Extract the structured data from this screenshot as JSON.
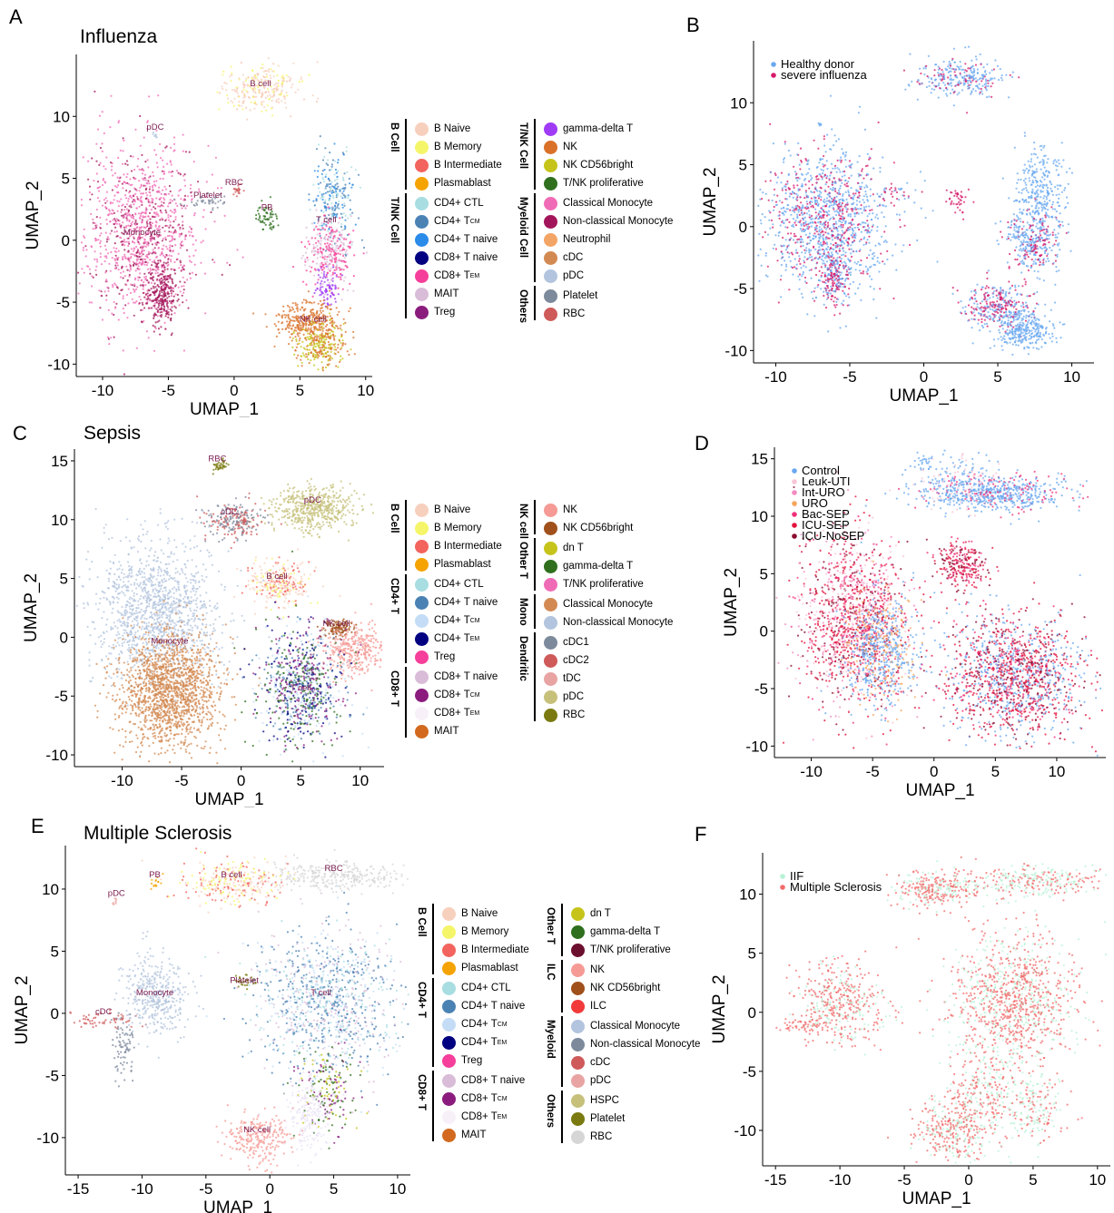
{
  "panels": [
    {
      "letter": "A",
      "title": "Influenza",
      "xlabel": "UMAP_1",
      "ylabel": "UMAP_2",
      "xticks": [
        "-10",
        "-5",
        "0",
        "5",
        "10"
      ],
      "yticks": [
        "10",
        "5",
        "0",
        "-5",
        "-10"
      ],
      "annotations": [
        "B cell",
        "pDC",
        "Monocyte",
        "Platelet",
        "RBC",
        "PB",
        "T cell",
        "NK cell"
      ]
    },
    {
      "letter": "B",
      "title": "",
      "xlabel": "UMAP_1",
      "ylabel": "UMAP_2",
      "xticks": [
        "-10",
        "-5",
        "0",
        "5",
        "10"
      ],
      "yticks": [
        "10",
        "5",
        "0",
        "-5",
        "-10"
      ],
      "legend": [
        "Healthy donor",
        "severe influenza"
      ]
    },
    {
      "letter": "C",
      "title": "Sepsis",
      "xlabel": "UMAP_1",
      "ylabel": "UMAP_2",
      "xticks": [
        "-10",
        "-5",
        "0",
        "5",
        "10"
      ],
      "yticks": [
        "15",
        "10",
        "5",
        "0",
        "-5",
        "-10"
      ],
      "annotations": [
        "RBC",
        "pDC",
        "cDC",
        "B cell",
        "NK cell",
        "Monocyte",
        "T cell"
      ]
    },
    {
      "letter": "D",
      "title": "",
      "xlabel": "UMAP_1",
      "ylabel": "UMAP_2",
      "xticks": [
        "-10",
        "-5",
        "0",
        "5",
        "10"
      ],
      "yticks": [
        "15",
        "10",
        "5",
        "0",
        "-5",
        "-10"
      ],
      "legend": [
        "Control",
        "Leuk-UTI",
        "Int-URO",
        "URO",
        "Bac-SEP",
        "ICU-SEP",
        "ICU-NoSEP"
      ]
    },
    {
      "letter": "E",
      "title": "Multiple Sclerosis",
      "xlabel": "UMAP_1",
      "ylabel": "UMAP_2",
      "xticks": [
        "-15",
        "-10",
        "-5",
        "0",
        "5",
        "10"
      ],
      "yticks": [
        "10",
        "5",
        "0",
        "-5",
        "-10"
      ],
      "annotations": [
        "RBC",
        "PB",
        "pDC",
        "B cell",
        "Platelet",
        "cDC",
        "Monocyte",
        "T cell",
        "NK cell"
      ]
    },
    {
      "letter": "F",
      "title": "",
      "xlabel": "UMAP_1",
      "ylabel": "UMAP_2",
      "xticks": [
        "-15",
        "-10",
        "-5",
        "0",
        "5",
        "10"
      ],
      "yticks": [
        "10",
        "5",
        "0",
        "-5",
        "-10"
      ],
      "legend": [
        "IIF",
        "Multiple Sclerosis"
      ]
    }
  ],
  "legends": {
    "A": {
      "left": [
        {
          "group": "B Cell",
          "items": [
            [
              "B Naive",
              "",
              "#f7d0bd"
            ],
            [
              "B Memory",
              "",
              "#f5f56a"
            ],
            [
              "B Intermediate",
              "",
              "#f2645d"
            ],
            [
              "Plasmablast",
              "",
              "#f5a300"
            ]
          ]
        },
        {
          "group": "T/NK Cell",
          "items": [
            [
              "CD4+ CTL",
              "",
              "#a8dde2"
            ],
            [
              "CD4+ T",
              "CM",
              "#4b82b4"
            ],
            [
              "CD4+ T naive",
              "",
              "#2b8be8"
            ],
            [
              "CD8+ T naive",
              "",
              "#000080"
            ],
            [
              "CD8+ T",
              "EM",
              "#f53f9a"
            ],
            [
              "MAIT",
              "",
              "#d9bcd8"
            ],
            [
              "Treg",
              "",
              "#8b1c7e"
            ]
          ]
        }
      ],
      "right": [
        {
          "group": "T/NK Cell",
          "items": [
            [
              "gamma-delta T",
              "",
              "#9f3af5"
            ],
            [
              "NK",
              "",
              "#d97129"
            ],
            [
              "NK CD56bright",
              "",
              "#c6c41a"
            ],
            [
              "T/NK proliferative",
              "",
              "#2f6f1e"
            ]
          ]
        },
        {
          "group": "Myeloid Cell",
          "items": [
            [
              "Classical Monocyte",
              "",
              "#f06bb6"
            ],
            [
              "Non-classical Monocyte",
              "",
              "#a3155a"
            ],
            [
              "Neutrophil",
              "",
              "#f2a565"
            ],
            [
              "cDC",
              "",
              "#d38a52"
            ],
            [
              "pDC",
              "",
              "#b3c4de"
            ]
          ]
        },
        {
          "group": "Others",
          "items": [
            [
              "Platelet",
              "",
              "#7d8a9c"
            ],
            [
              "RBC",
              "",
              "#cf5a5a"
            ]
          ]
        }
      ]
    },
    "C": {
      "left": [
        {
          "group": "B Cell",
          "items": [
            [
              "B Naive",
              "",
              "#f7d0bd"
            ],
            [
              "B Memory",
              "",
              "#f5f56a"
            ],
            [
              "B Intermediate",
              "",
              "#f2645d"
            ],
            [
              "Plasmablast",
              "",
              "#f5a300"
            ]
          ]
        },
        {
          "group": "CD4+ T",
          "items": [
            [
              "CD4+ CTL",
              "",
              "#a8dde2"
            ],
            [
              "CD4+ T naive",
              "",
              "#4b82b4"
            ],
            [
              "CD4+ T",
              "CM",
              "#c4dcf5"
            ],
            [
              "CD4+ T",
              "EM",
              "#000080"
            ],
            [
              "Treg",
              "",
              "#f53f9a"
            ]
          ]
        },
        {
          "group": "CD8+ T",
          "items": [
            [
              "CD8+ T naive",
              "",
              "#d9bcd8"
            ],
            [
              "CD8+ T",
              "CM",
              "#8b1c7e"
            ],
            [
              "CD8+ T",
              "EM",
              "#f8f0f8"
            ],
            [
              "MAIT",
              "",
              "#d2691e"
            ]
          ]
        }
      ],
      "right": [
        {
          "group": "NK cell",
          "items": [
            [
              "NK",
              "",
              "#f59a94"
            ],
            [
              "NK CD56bright",
              "",
              "#a0501a"
            ]
          ]
        },
        {
          "group": "Other T",
          "items": [
            [
              "dn T",
              "",
              "#c6c41a"
            ],
            [
              "gamma-delta T",
              "",
              "#2f6f1e"
            ],
            [
              "T/NK proliferative",
              "",
              "#f06bb6"
            ]
          ]
        },
        {
          "group": "Mono",
          "items": [
            [
              "Classical Monocyte",
              "",
              "#d38a52"
            ],
            [
              "Non-classical Monocyte",
              "",
              "#b3c4de"
            ]
          ]
        },
        {
          "group": "Dendritic",
          "items": [
            [
              "cDC1",
              "",
              "#7d8a9c"
            ],
            [
              "cDC2",
              "",
              "#cf5a5a"
            ],
            [
              "tDC",
              "",
              "#e8a3a3"
            ],
            [
              "pDC",
              "",
              "#c6c07a"
            ],
            [
              "RBC",
              "",
              "#7a7a10"
            ]
          ]
        }
      ]
    },
    "E": {
      "left": [
        {
          "group": "B Cell",
          "items": [
            [
              "B Naive",
              "",
              "#f7d0bd"
            ],
            [
              "B Memory",
              "",
              "#f5f56a"
            ],
            [
              "B Intermediate",
              "",
              "#f2645d"
            ],
            [
              "Plasmablast",
              "",
              "#f5a300"
            ]
          ]
        },
        {
          "group": "CD4+ T",
          "items": [
            [
              "CD4+ CTL",
              "",
              "#a8dde2"
            ],
            [
              "CD4+ T naive",
              "",
              "#4b82b4"
            ],
            [
              "CD4+ T",
              "CM",
              "#c4dcf5"
            ],
            [
              "CD4+ T",
              "EM",
              "#000080"
            ],
            [
              "Treg",
              "",
              "#f53f9a"
            ]
          ]
        },
        {
          "group": "CD8+ T",
          "items": [
            [
              "CD8+ T naive",
              "",
              "#d9bcd8"
            ],
            [
              "CD8+ T",
              "CM",
              "#8b1c7e"
            ],
            [
              "CD8+ T",
              "EM",
              "#f8f0f8"
            ],
            [
              "MAIT",
              "",
              "#d2691e"
            ]
          ]
        }
      ],
      "right": [
        {
          "group": "Other T",
          "items": [
            [
              "dn T",
              "",
              "#c6c41a"
            ],
            [
              "gamma-delta T",
              "",
              "#2f6f1e"
            ],
            [
              "T/NK proliferative",
              "",
              "#6b0f2e"
            ]
          ]
        },
        {
          "group": "ILC",
          "items": [
            [
              "NK",
              "",
              "#f59a94"
            ],
            [
              "NK CD56bright",
              "",
              "#a0501a"
            ],
            [
              "ILC",
              "",
              "#f23a3a"
            ]
          ]
        },
        {
          "group": "Myeloid",
          "items": [
            [
              "Classical Monocyte",
              "",
              "#b3c4de"
            ],
            [
              "Non-classical Monocyte",
              "",
              "#7d8a9c"
            ],
            [
              "cDC",
              "",
              "#cf5a5a"
            ],
            [
              "pDC",
              "",
              "#e8a3a3"
            ]
          ]
        },
        {
          "group": "Others",
          "items": [
            [
              "HSPC",
              "",
              "#c6c07a"
            ],
            [
              "Platelet",
              "",
              "#7a7a10"
            ],
            [
              "RBC",
              "",
              "#d6d6d6"
            ]
          ]
        }
      ]
    }
  },
  "condition_legends": {
    "B": [
      [
        "Healthy donor",
        "#6aa8f0"
      ],
      [
        "severe influenza",
        "#d6196b"
      ]
    ],
    "D": [
      [
        "Control",
        "#6aa8f0"
      ],
      [
        "Leuk-UTI",
        "#f7c6d6"
      ],
      [
        "Int-URO",
        "#f28ac0"
      ],
      [
        "URO",
        "#f5a65b"
      ],
      [
        "Bac-SEP",
        "#f0307a"
      ],
      [
        "ICU-SEP",
        "#e3123c"
      ],
      [
        "ICU-NoSEP",
        "#8b0a2e"
      ]
    ],
    "F": [
      [
        "IIF",
        "#b7f2d6"
      ],
      [
        "Multiple Sclerosis",
        "#f26b6b"
      ]
    ]
  },
  "chart_data": [
    {
      "panel": "A",
      "type": "scatter",
      "title": "Influenza",
      "xlabel": "UMAP_1",
      "ylabel": "UMAP_2",
      "xlim": [
        -12,
        10.5
      ],
      "ylim": [
        -11,
        15
      ],
      "colored_by": "cell type",
      "clusters": [
        {
          "label": "B cell",
          "x": 2,
          "y": 12,
          "color": "#f7d0bd"
        },
        {
          "label": "pDC",
          "x": -6,
          "y": 8.5,
          "color": "#b3c4de"
        },
        {
          "label": "Monocyte",
          "x": -7,
          "y": 0,
          "color": "#f06bb6"
        },
        {
          "label": "Platelet",
          "x": -2,
          "y": 3,
          "color": "#7d8a9c"
        },
        {
          "label": "RBC",
          "x": 0,
          "y": 4,
          "color": "#cf5a5a"
        },
        {
          "label": "PB",
          "x": 2.5,
          "y": 2,
          "color": "#2f6f1e"
        },
        {
          "label": "T cell",
          "x": 7,
          "y": 1,
          "color": "#2b8be8"
        },
        {
          "label": "NK cell",
          "x": 6,
          "y": -7,
          "color": "#d97129"
        }
      ]
    },
    {
      "panel": "B",
      "type": "scatter",
      "xlabel": "UMAP_1",
      "ylabel": "UMAP_2",
      "xlim": [
        -11.5,
        11.5
      ],
      "ylim": [
        -11,
        15
      ],
      "colored_by": "condition",
      "series": [
        {
          "name": "Healthy donor"
        },
        {
          "name": "severe influenza"
        }
      ]
    },
    {
      "panel": "C",
      "type": "scatter",
      "title": "Sepsis",
      "xlabel": "UMAP_1",
      "ylabel": "UMAP_2",
      "xlim": [
        -14,
        12
      ],
      "ylim": [
        -11,
        16
      ],
      "colored_by": "cell type",
      "clusters": [
        {
          "label": "RBC",
          "x": -2,
          "y": 14.5,
          "color": "#7a7a10"
        },
        {
          "label": "pDC",
          "x": 6,
          "y": 11,
          "color": "#c6c07a"
        },
        {
          "label": "cDC",
          "x": -1,
          "y": 10,
          "color": "#cf5a5a"
        },
        {
          "label": "B cell",
          "x": 3,
          "y": 4.5,
          "color": "#f7d0bd"
        },
        {
          "label": "NK cell",
          "x": 8,
          "y": 0.5,
          "color": "#f59a94"
        },
        {
          "label": "Monocyte",
          "x": -6,
          "y": -1,
          "color": "#d38a52"
        },
        {
          "label": "T cell",
          "x": 5,
          "y": -5,
          "color": "#4b82b4"
        }
      ]
    },
    {
      "panel": "D",
      "type": "scatter",
      "xlabel": "UMAP_1",
      "ylabel": "UMAP_2",
      "xlim": [
        -13,
        14
      ],
      "ylim": [
        -11,
        16
      ],
      "colored_by": "condition",
      "series": [
        {
          "name": "Control"
        },
        {
          "name": "Leuk-UTI"
        },
        {
          "name": "Int-URO"
        },
        {
          "name": "URO"
        },
        {
          "name": "Bac-SEP"
        },
        {
          "name": "ICU-SEP"
        },
        {
          "name": "ICU-NoSEP"
        }
      ]
    },
    {
      "panel": "E",
      "type": "scatter",
      "title": "Multiple Sclerosis",
      "xlabel": "UMAP_1",
      "ylabel": "UMAP_2",
      "xlim": [
        -16,
        11
      ],
      "ylim": [
        -13,
        13.5
      ],
      "colored_by": "cell type",
      "clusters": [
        {
          "label": "RBC",
          "x": 5,
          "y": 11,
          "color": "#d6d6d6"
        },
        {
          "label": "PB",
          "x": -9,
          "y": 10.5,
          "color": "#f5a300"
        },
        {
          "label": "pDC",
          "x": -12,
          "y": 9,
          "color": "#e8a3a3"
        },
        {
          "label": "B cell",
          "x": -3,
          "y": 10.5,
          "color": "#f2645d"
        },
        {
          "label": "Platelet",
          "x": -2,
          "y": 2,
          "color": "#7a7a10"
        },
        {
          "label": "cDC",
          "x": -13,
          "y": -0.5,
          "color": "#cf5a5a"
        },
        {
          "label": "Monocyte",
          "x": -9,
          "y": 1,
          "color": "#b3c4de"
        },
        {
          "label": "T cell",
          "x": 4,
          "y": 1,
          "color": "#4b82b4"
        },
        {
          "label": "NK cell",
          "x": -1,
          "y": -10,
          "color": "#f59a94"
        }
      ]
    },
    {
      "panel": "F",
      "type": "scatter",
      "xlabel": "UMAP_1",
      "ylabel": "UMAP_2",
      "xlim": [
        -16,
        11
      ],
      "ylim": [
        -13,
        13.5
      ],
      "colored_by": "condition",
      "series": [
        {
          "name": "IIF"
        },
        {
          "name": "Multiple Sclerosis"
        }
      ]
    }
  ]
}
